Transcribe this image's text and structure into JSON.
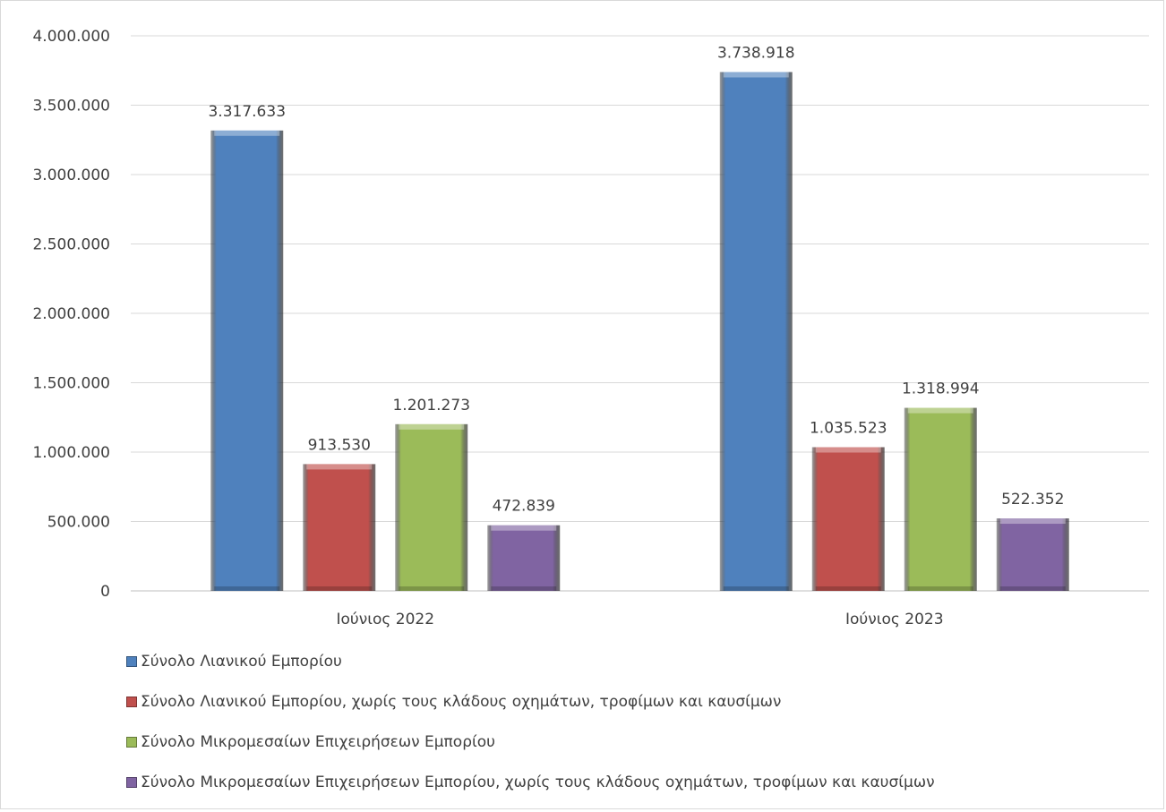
{
  "chart_data": {
    "type": "bar",
    "title": "",
    "xlabel": "",
    "ylabel": "",
    "categories": [
      "Ιούνιος 2022",
      "Ιούνιος 2023"
    ],
    "ylim": [
      0,
      4000000
    ],
    "yticks": [
      0,
      500000,
      1000000,
      1500000,
      2000000,
      2500000,
      3000000,
      3500000,
      4000000
    ],
    "ytick_labels": [
      "0",
      "500.000",
      "1.000.000",
      "1.500.000",
      "2.000.000",
      "2.500.000",
      "3.000.000",
      "3.500.000",
      "4.000.000"
    ],
    "grid": true,
    "legend_position": "bottom",
    "series": [
      {
        "name": "Σύνολο Λιανικού Εμπορίου",
        "color": "#4f81bd",
        "values": [
          3317633,
          3738918
        ],
        "labels": [
          "3.317.633",
          "3.738.918"
        ]
      },
      {
        "name": "Σύνολο Λιανικού Εμπορίου, χωρίς τους κλάδους οχημάτων, τροφίμων και καυσίμων",
        "color": "#c0504d",
        "values": [
          913530,
          1035523
        ],
        "labels": [
          "913.530",
          "1.035.523"
        ]
      },
      {
        "name": "Σύνολο Μικρομεσαίων Επιχειρήσεων Εμπορίου",
        "color": "#9bbb59",
        "values": [
          1201273,
          1318994
        ],
        "labels": [
          "1.201.273",
          "1.318.994"
        ]
      },
      {
        "name": "Σύνολο Μικρομεσαίων Επιχειρήσεων Εμπορίου, χωρίς τους κλάδους οχημάτων, τροφίμων και καυσίμων",
        "color": "#8064a2",
        "values": [
          472839,
          522352
        ],
        "labels": [
          "472.839",
          "522.352"
        ]
      }
    ]
  }
}
